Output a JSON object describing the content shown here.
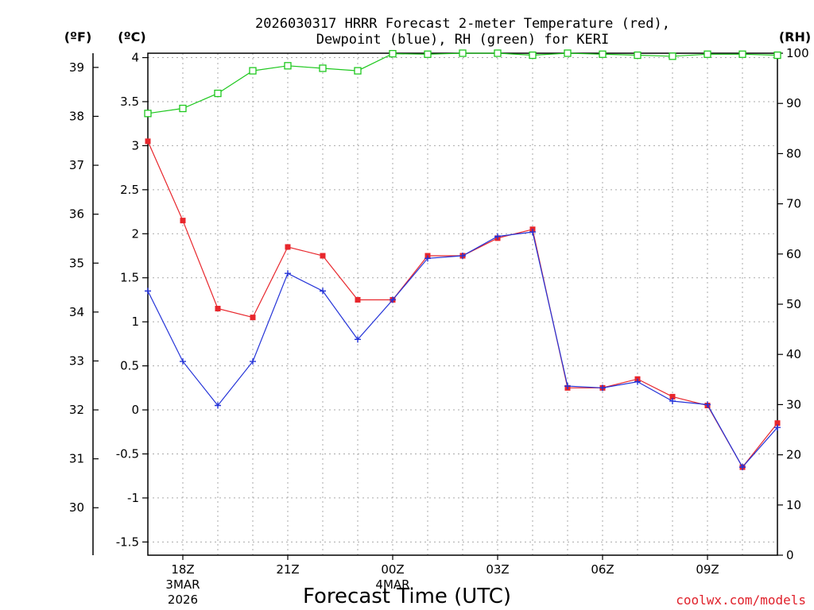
{
  "chart_data": {
    "type": "line",
    "title_line1": "2026030317 HRRR Forecast 2-meter Temperature (red),",
    "title_line2": "Dewpoint (blue), RH (green) for KERI",
    "units": {
      "fahrenheit": "(ºF)",
      "celsius": "(ºC)",
      "rh": "(RH)"
    },
    "xlabel": "Forecast Time (UTC)",
    "credit": "coolwx.com/models",
    "x_hours": [
      17,
      18,
      19,
      20,
      21,
      22,
      23,
      24,
      25,
      26,
      27,
      28,
      29,
      30,
      31,
      32,
      33,
      34,
      35
    ],
    "x_ticks": [
      {
        "hour": 18,
        "label": "18Z",
        "sub1": "3MAR",
        "sub2": "2026"
      },
      {
        "hour": 21,
        "label": "21Z",
        "sub1": "",
        "sub2": ""
      },
      {
        "hour": 24,
        "label": "00Z",
        "sub1": "4MAR",
        "sub2": ""
      },
      {
        "hour": 27,
        "label": "03Z",
        "sub1": "",
        "sub2": ""
      },
      {
        "hour": 30,
        "label": "06Z",
        "sub1": "",
        "sub2": ""
      },
      {
        "hour": 33,
        "label": "09Z",
        "sub1": "",
        "sub2": ""
      }
    ],
    "celsius_ticks": [
      "4",
      "3.5",
      "3",
      "2.5",
      "2",
      "1.5",
      "1",
      "0.5",
      "0",
      "-0.5",
      "-1",
      "-1.5"
    ],
    "celsius_tick_values": [
      4,
      3.5,
      3,
      2.5,
      2,
      1.5,
      1,
      0.5,
      0,
      -0.5,
      -1,
      -1.5
    ],
    "fahrenheit_ticks": [
      "39",
      "38",
      "37",
      "36",
      "35",
      "34",
      "33",
      "32",
      "31",
      "30"
    ],
    "fahrenheit_tick_values": [
      39,
      38,
      37,
      36,
      35,
      34,
      33,
      32,
      31,
      30
    ],
    "rh_ticks": [
      "100",
      "90",
      "80",
      "70",
      "60",
      "50",
      "40",
      "30",
      "20",
      "10",
      "0"
    ],
    "rh_tick_values": [
      100,
      90,
      80,
      70,
      60,
      50,
      40,
      30,
      20,
      10,
      0
    ],
    "ylim_celsius": [
      -1.65,
      4.05
    ],
    "ylim_rh": [
      0,
      100
    ],
    "series": [
      {
        "name": "Temperature",
        "color": "#e8262c",
        "marker": "filled-square",
        "axis": "celsius",
        "values": [
          3.05,
          2.15,
          1.15,
          1.05,
          1.85,
          1.75,
          1.25,
          1.25,
          1.75,
          1.75,
          1.95,
          2.05,
          0.25,
          0.25,
          0.35,
          0.15,
          0.05,
          -0.65,
          -0.15
        ]
      },
      {
        "name": "Dewpoint",
        "color": "#2433d8",
        "marker": "plus",
        "axis": "celsius",
        "values": [
          1.35,
          0.55,
          0.05,
          0.55,
          1.55,
          1.35,
          0.8,
          1.25,
          1.72,
          1.75,
          1.97,
          2.02,
          0.27,
          0.25,
          0.32,
          0.1,
          0.06,
          -0.65,
          -0.2
        ]
      },
      {
        "name": "RH",
        "color": "#1ec81e",
        "marker": "open-square",
        "axis": "rh",
        "values": [
          88,
          89,
          92,
          96.5,
          97.5,
          97,
          96.5,
          99.9,
          99.8,
          100,
          100,
          99.6,
          100,
          99.8,
          99.6,
          99.4,
          99.8,
          99.8,
          99.6
        ]
      }
    ]
  }
}
